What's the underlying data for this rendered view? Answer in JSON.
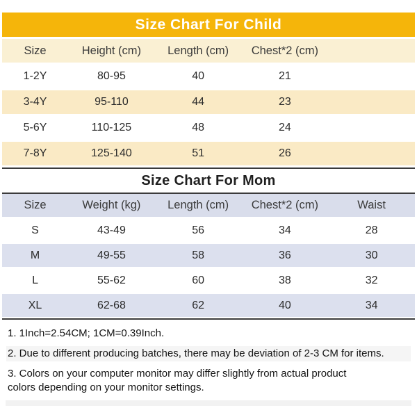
{
  "child_chart": {
    "title": "Size Chart For Child",
    "columns": [
      "Size",
      "Height (cm)",
      "Length (cm)",
      "Chest*2 (cm)"
    ],
    "rows": [
      [
        "1-2Y",
        "80-95",
        "40",
        "21"
      ],
      [
        "3-4Y",
        "95-110",
        "44",
        "23"
      ],
      [
        "5-6Y",
        "110-125",
        "48",
        "24"
      ],
      [
        "7-8Y",
        "125-140",
        "51",
        "26"
      ]
    ]
  },
  "mom_chart": {
    "title": "Size Chart For Mom",
    "columns": [
      "Size",
      "Weight (kg)",
      "Length (cm)",
      "Chest*2 (cm)",
      "Waist"
    ],
    "rows": [
      [
        "S",
        "43-49",
        "56",
        "34",
        "28"
      ],
      [
        "M",
        "49-55",
        "58",
        "36",
        "30"
      ],
      [
        "L",
        "55-62",
        "60",
        "38",
        "32"
      ],
      [
        "XL",
        "62-68",
        "62",
        "40",
        "34"
      ]
    ]
  },
  "notes": [
    "1. 1Inch=2.54CM; 1CM=0.39Inch.",
    "2. Due to different producing batches, there may be deviation of 2-3 CM for items.",
    "3. Colors on your computer monitor may differ slightly from actual product colors depending on your monitor settings."
  ],
  "colors": {
    "child_accent": "#f5b50a",
    "child_title_text": "#ffffff",
    "child_header_row_bg": "#faf0d3",
    "child_alt_row_bg": "#faeac5",
    "mom_header_row_bg": "#d9ddeb",
    "mom_alt_row_bg": "#dce0ee",
    "divider": "#3b3b3b",
    "text": "#2b2b2b"
  }
}
